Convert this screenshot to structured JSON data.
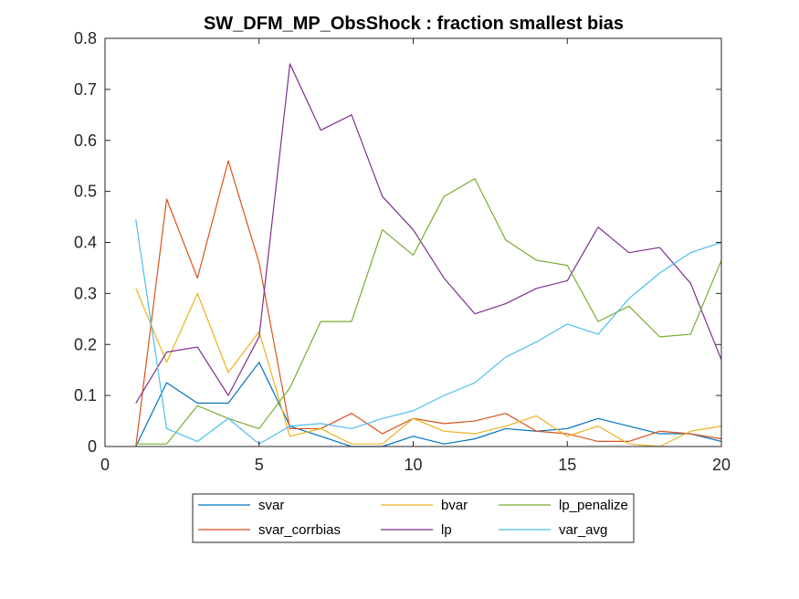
{
  "chart_data": {
    "type": "line",
    "title": "SW_DFM_MP_ObsShock : fraction smallest bias",
    "xlabel": "",
    "ylabel": "",
    "xlim": [
      0,
      20
    ],
    "ylim": [
      0,
      0.8
    ],
    "xticks": [
      0,
      5,
      10,
      15,
      20
    ],
    "yticks": [
      0,
      0.1,
      0.2,
      0.3,
      0.4,
      0.5,
      0.6,
      0.7,
      0.8
    ],
    "grid": false,
    "legend_position": "bottom-outside",
    "x": [
      1,
      2,
      3,
      4,
      5,
      6,
      7,
      8,
      9,
      10,
      11,
      12,
      13,
      14,
      15,
      16,
      17,
      18,
      19,
      20
    ],
    "series": [
      {
        "name": "svar",
        "color": "#0072BD",
        "values": [
          0.0,
          0.125,
          0.085,
          0.085,
          0.165,
          0.04,
          0.02,
          0.0,
          0.0,
          0.02,
          0.005,
          0.015,
          0.035,
          0.03,
          0.035,
          0.055,
          0.04,
          0.025,
          0.025,
          0.01
        ]
      },
      {
        "name": "svar_corrbias",
        "color": "#D95319",
        "values": [
          0.0,
          0.485,
          0.33,
          0.56,
          0.36,
          0.035,
          0.035,
          0.065,
          0.025,
          0.055,
          0.045,
          0.05,
          0.065,
          0.03,
          0.025,
          0.01,
          0.01,
          0.03,
          0.025,
          0.015
        ]
      },
      {
        "name": "bvar",
        "color": "#EDB120",
        "values": [
          0.31,
          0.165,
          0.3,
          0.145,
          0.225,
          0.02,
          0.035,
          0.005,
          0.005,
          0.055,
          0.03,
          0.025,
          0.04,
          0.06,
          0.02,
          0.04,
          0.005,
          0.0,
          0.03,
          0.04
        ]
      },
      {
        "name": "lp",
        "color": "#7E2F8E",
        "values": [
          0.085,
          0.185,
          0.195,
          0.1,
          0.215,
          0.75,
          0.62,
          0.65,
          0.49,
          0.425,
          0.33,
          0.26,
          0.28,
          0.31,
          0.325,
          0.43,
          0.38,
          0.39,
          0.32,
          0.17
        ]
      },
      {
        "name": "lp_penalize",
        "color": "#77AC30",
        "values": [
          0.005,
          0.005,
          0.08,
          0.055,
          0.035,
          0.115,
          0.245,
          0.245,
          0.425,
          0.375,
          0.49,
          0.525,
          0.405,
          0.365,
          0.355,
          0.245,
          0.275,
          0.215,
          0.22,
          0.365
        ]
      },
      {
        "name": "var_avg",
        "color": "#4DBEEE",
        "values": [
          0.445,
          0.035,
          0.01,
          0.055,
          0.005,
          0.04,
          0.045,
          0.035,
          0.055,
          0.07,
          0.1,
          0.125,
          0.175,
          0.205,
          0.24,
          0.22,
          0.29,
          0.34,
          0.38,
          0.4
        ]
      }
    ],
    "legend_order": [
      "svar",
      "bvar",
      "lp_penalize",
      "svar_corrbias",
      "lp",
      "var_avg"
    ]
  }
}
